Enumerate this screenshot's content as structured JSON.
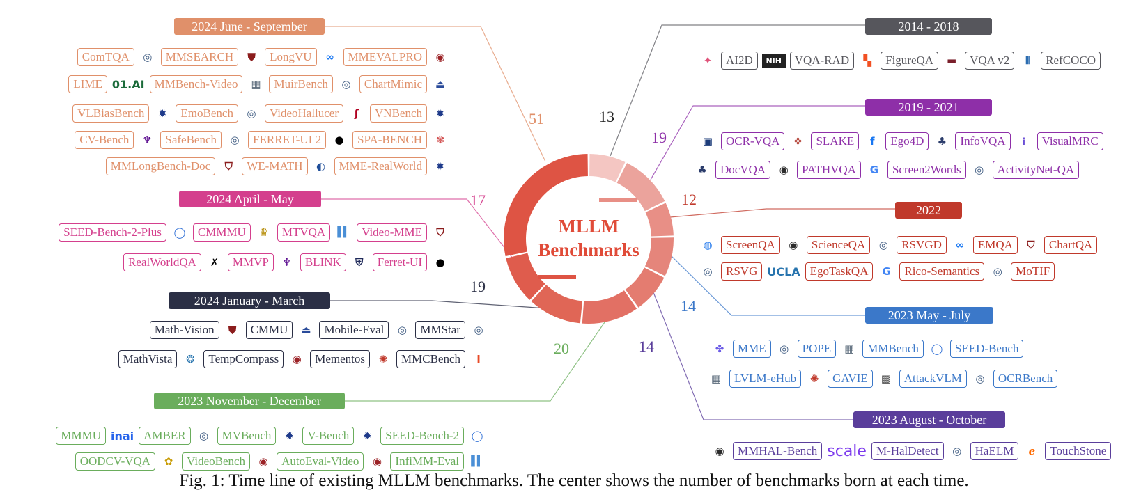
{
  "center": {
    "line1": "MLLM",
    "line2": "Benchmarks"
  },
  "caption": "Fig. 1: Time line of existing MLLM benchmarks. The center shows the number of benchmarks born at each time.",
  "colors": {
    "p2024_jun_sep": "#e0906a",
    "p2024_apr_may": "#d43f8d",
    "p2024_jan_mar": "#2b2f45",
    "p2023_nov_dec": "#6aad5c",
    "p2014_2018": "#56565c",
    "p2019_2021": "#8e2fa8",
    "p2022": "#c0392b",
    "p2023_may_jul": "#3b78c9",
    "p2023_aug_oct": "#5a3e9b"
  },
  "periods": [
    {
      "key": "p2024_jun_sep",
      "label": "2024   June - September",
      "count": "51",
      "countColor": "#e0906a",
      "rows": [
        [
          [
            "t",
            "ComTQA"
          ],
          [
            "l",
            "seal-icon"
          ],
          [
            "t",
            "MMSEARCH"
          ],
          [
            "l",
            "cuhk-shield-icon"
          ],
          [
            "t",
            "LongVU"
          ],
          [
            "l",
            "meta-logo-icon"
          ],
          [
            "t",
            "MMEVALPRO"
          ],
          [
            "l",
            "pku-seal-icon"
          ]
        ],
        [
          [
            "t",
            "LIME"
          ],
          [
            "w",
            "01.AI"
          ],
          [
            "t",
            "MMBench-Video"
          ],
          [
            "l",
            "campus-photo-icon"
          ],
          [
            "t",
            "MuirBench"
          ],
          [
            "l",
            "seal-icon"
          ],
          [
            "t",
            "ChartMimic"
          ],
          [
            "l",
            "arch-icon"
          ]
        ],
        [
          [
            "t",
            "VLBiasBench"
          ],
          [
            "l",
            "gear-seal-icon"
          ],
          [
            "t",
            "EmoBench"
          ],
          [
            "l",
            "seal-icon"
          ],
          [
            "t",
            "VideoHallucer"
          ],
          [
            "l",
            "bigai-icon"
          ],
          [
            "t",
            "VNBench"
          ],
          [
            "l",
            "gear-seal-icon"
          ]
        ],
        [
          [
            "t",
            "CV-Bench"
          ],
          [
            "l",
            "nyu-torch-icon"
          ],
          [
            "t",
            "SafeBench"
          ],
          [
            "l",
            "seal-icon"
          ],
          [
            "t",
            "FERRET-UI 2"
          ],
          [
            "l",
            "apple-icon"
          ],
          [
            "t",
            "SPA-BENCH"
          ],
          [
            "l",
            "shell-icon"
          ]
        ],
        [
          [
            "t",
            "MMLongBench-Doc"
          ],
          [
            "l",
            "crest-icon"
          ],
          [
            "t",
            "WE-MATH"
          ],
          [
            "l",
            "bupt-icon"
          ],
          [
            "t",
            "MME-RealWorld"
          ],
          [
            "l",
            "gear-seal-icon"
          ]
        ]
      ]
    },
    {
      "key": "p2024_apr_may",
      "label": "2024   April -  May",
      "count": "17",
      "countColor": "#d43f8d",
      "rows": [
        [
          [
            "t",
            "SEED-Bench-2-Plus"
          ],
          [
            "l",
            "seed-circle-icon"
          ],
          [
            "t",
            "CMMMU"
          ],
          [
            "l",
            "trophy-icon"
          ],
          [
            "t",
            "MTVQA"
          ],
          [
            "l",
            "bars-icon"
          ],
          [
            "t",
            "Video-MME"
          ],
          [
            "l",
            "crest-icon"
          ]
        ],
        [
          [
            "t",
            "RealWorldQA"
          ],
          [
            "l",
            "xai-icon"
          ],
          [
            "t",
            "MMVP"
          ],
          [
            "l",
            "nyu-torch-icon"
          ],
          [
            "t",
            "BLINK"
          ],
          [
            "l",
            "penn-shield-icon"
          ],
          [
            "t",
            "Ferret-UI"
          ],
          [
            "l",
            "apple-icon"
          ]
        ]
      ]
    },
    {
      "key": "p2024_jan_mar",
      "label": "2024   January - March",
      "count": "19",
      "countColor": "#2b2f45",
      "rows": [
        [
          [
            "t",
            "Math-Vision"
          ],
          [
            "l",
            "cuhk-shield-icon"
          ],
          [
            "t",
            "CMMU"
          ],
          [
            "l",
            "arch-icon"
          ],
          [
            "t",
            "Mobile-Eval"
          ],
          [
            "l",
            "seal-icon"
          ],
          [
            "t",
            "MMStar"
          ],
          [
            "l",
            "seal-icon"
          ]
        ],
        [
          [
            "t",
            "MathVista"
          ],
          [
            "l",
            "ucla-seal-icon"
          ],
          [
            "t",
            "TempCompass"
          ],
          [
            "l",
            "pku-seal-icon"
          ],
          [
            "t",
            "Mementos"
          ],
          [
            "l",
            "umd-seal-icon"
          ],
          [
            "t",
            "MMCBench"
          ],
          [
            "l",
            "illinois-i-icon"
          ]
        ]
      ]
    },
    {
      "key": "p2023_nov_dec",
      "label": "2023   November - December",
      "count": "20",
      "countColor": "#6aad5c",
      "rows": [
        [
          [
            "t",
            "MMMU"
          ],
          [
            "w",
            "inai"
          ],
          [
            "t",
            "AMBER"
          ],
          [
            "l",
            "seal-icon"
          ],
          [
            "t",
            "MVBench"
          ],
          [
            "l",
            "gear-seal-icon"
          ],
          [
            "t",
            "V-Bench"
          ],
          [
            "l",
            "gear-seal-icon"
          ],
          [
            "t",
            "SEED-Bench-2"
          ],
          [
            "l",
            "seed-circle-icon"
          ]
        ],
        [
          [
            "t",
            "OODCV-VQA"
          ],
          [
            "l",
            "ucsc-icon"
          ],
          [
            "t",
            "VideoBench"
          ],
          [
            "l",
            "pku-seal-icon"
          ],
          [
            "t",
            "AutoEval-Video"
          ],
          [
            "l",
            "pku-seal-icon"
          ],
          [
            "t",
            "InfiMM-Eval"
          ],
          [
            "l",
            "bars-icon"
          ]
        ]
      ]
    },
    {
      "key": "p2014_2018",
      "label": "2014 - 2018",
      "count": "13",
      "countColor": "#222222",
      "rows": [
        [
          [
            "l",
            "ai2-icon"
          ],
          [
            "t",
            "AI2D"
          ],
          [
            "l",
            "nih-icon"
          ],
          [
            "t",
            "VQA-RAD"
          ],
          [
            "l",
            "microsoft-icon"
          ],
          [
            "t",
            "FigureQA"
          ],
          [
            "l",
            "vt-icon"
          ],
          [
            "t",
            "VQA v2"
          ],
          [
            "l",
            "columns-icon"
          ],
          [
            "t",
            "RefCOCO"
          ]
        ]
      ]
    },
    {
      "key": "p2019_2021",
      "label": "2019 - 2021",
      "count": "19",
      "countColor": "#8e2fa8",
      "rows": [
        [
          [
            "l",
            "iitk-icon"
          ],
          [
            "t",
            "OCR-VQA"
          ],
          [
            "l",
            "knot-icon"
          ],
          [
            "t",
            "SLAKE"
          ],
          [
            "l",
            "facebook-icon"
          ],
          [
            "t",
            "Ego4D"
          ],
          [
            "l",
            "tree-icon"
          ],
          [
            "t",
            "InfoVQA"
          ],
          [
            "l",
            "dots-icon"
          ],
          [
            "t",
            "VisualMRC"
          ]
        ],
        [
          [
            "l",
            "tree-icon"
          ],
          [
            "t",
            "DocVQA"
          ],
          [
            "l",
            "seal-dark-icon"
          ],
          [
            "t",
            "PATHVQA"
          ],
          [
            "l",
            "google-icon"
          ],
          [
            "t",
            "Screen2Words"
          ],
          [
            "l",
            "seal-icon"
          ],
          [
            "t",
            "ActivityNet-QA"
          ]
        ]
      ]
    },
    {
      "key": "p2022",
      "label": "2022",
      "count": "12",
      "countColor": "#c0392b",
      "rows": [
        [
          [
            "l",
            "ring-icon"
          ],
          [
            "t",
            "ScreenQA"
          ],
          [
            "l",
            "seal-dark-icon"
          ],
          [
            "t",
            "ScienceQA"
          ],
          [
            "l",
            "seal-icon"
          ],
          [
            "t",
            "RSVGD"
          ],
          [
            "l",
            "meta-logo-icon"
          ],
          [
            "t",
            "EMQA"
          ],
          [
            "l",
            "crest-icon"
          ],
          [
            "t",
            "ChartQA"
          ]
        ],
        [
          [
            "l",
            "seal-icon"
          ],
          [
            "t",
            "RSVG"
          ],
          [
            "w",
            "UCLA"
          ],
          [
            "t",
            "EgoTaskQA"
          ],
          [
            "l",
            "google-icon"
          ],
          [
            "t",
            "Rico-Semantics"
          ],
          [
            "l",
            "seal-icon"
          ],
          [
            "t",
            "MoTIF"
          ]
        ]
      ]
    },
    {
      "key": "p2023_may_jul",
      "label": "2023   May - July",
      "count": "14",
      "countColor": "#3b78c9",
      "rows": [
        [
          [
            "l",
            "petals-icon"
          ],
          [
            "t",
            "MME"
          ],
          [
            "l",
            "seal-icon"
          ],
          [
            "t",
            "POPE"
          ],
          [
            "l",
            "campus-photo-icon"
          ],
          [
            "t",
            "MMBench"
          ],
          [
            "l",
            "seed-circle-icon"
          ],
          [
            "t",
            "SEED-Bench"
          ]
        ],
        [
          [
            "l",
            "campus-photo-icon"
          ],
          [
            "t",
            "LVLM-eHub"
          ],
          [
            "l",
            "umd-seal-icon"
          ],
          [
            "t",
            "GAVIE"
          ],
          [
            "l",
            "qr-icon"
          ],
          [
            "t",
            "AttackVLM"
          ],
          [
            "l",
            "seal-icon"
          ],
          [
            "t",
            "OCRBench"
          ]
        ]
      ]
    },
    {
      "key": "p2023_aug_oct",
      "label": "2023   August - October",
      "count": "14",
      "countColor": "#5a3e9b",
      "rows": [
        [
          [
            "l",
            "seal-dark-icon"
          ],
          [
            "t",
            "MMHAL-Bench"
          ],
          [
            "w",
            "scale"
          ],
          [
            "t",
            "M-HalDetect"
          ],
          [
            "l",
            "seal-icon"
          ],
          [
            "t",
            "HaELM"
          ],
          [
            "l",
            "alibaba-icon"
          ],
          [
            "t",
            "TouchStone"
          ]
        ]
      ]
    }
  ]
}
